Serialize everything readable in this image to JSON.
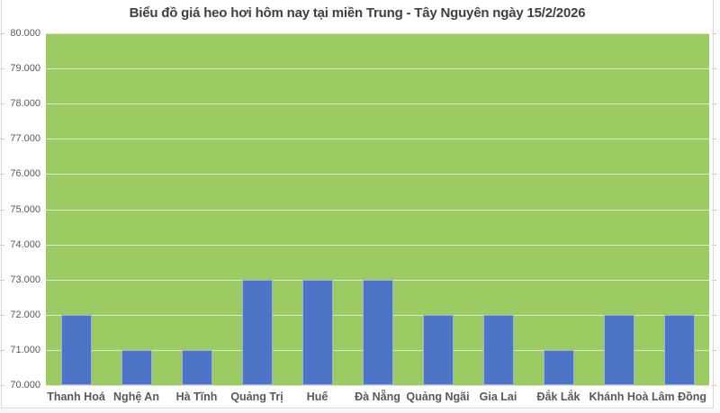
{
  "chart_data": {
    "type": "bar",
    "title": "Biểu đồ giá heo hơi hôm nay tại miền Trung - Tây Nguyên ngày 15/2/2026",
    "categories": [
      "Thanh Hoá",
      "Nghệ An",
      "Hà Tĩnh",
      "Quảng Trị",
      "Huế",
      "Đà Nẵng",
      "Quảng Ngãi",
      "Gia Lai",
      "Đắk Lắk",
      "Khánh Hoà",
      "Lâm Đồng"
    ],
    "values": [
      72000,
      71000,
      71000,
      73000,
      73000,
      73000,
      72000,
      72000,
      71000,
      72000,
      72000
    ],
    "xlabel": "",
    "ylabel": "",
    "ylim": [
      70000,
      80000
    ],
    "y_tick_step": 1000,
    "y_tick_labels": [
      "70.000",
      "71.000",
      "72.000",
      "73.000",
      "74.000",
      "75.000",
      "76.000",
      "77.000",
      "78.000",
      "79.000",
      "80.000"
    ],
    "grid": true,
    "legend_position": "none",
    "colors": {
      "bar": "#4D74C6",
      "bar_edge": "rgba(255,255,255,0.45)",
      "plot_background": "#9CCB63",
      "gridline": "#DCE9C6",
      "title_text": "#404040",
      "axis_text": "#595959",
      "chart_border": "#D9D9D9",
      "tick": "#C9C9C9"
    }
  }
}
